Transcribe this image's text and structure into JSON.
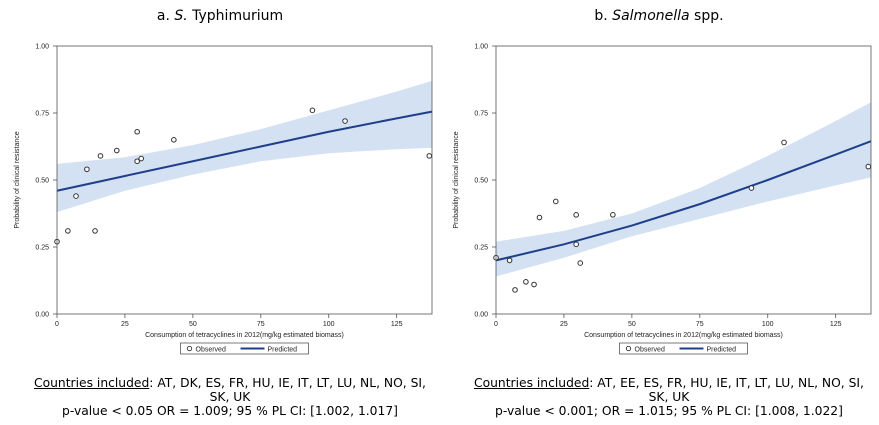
{
  "panels": [
    {
      "title_prefix": "a. ",
      "title_italic": "S.",
      "title_suffix": " Typhimurium",
      "caption_label": "Countries included",
      "caption_countries": ": AT, DK, ES, FR, HU, IE, IT, LT, LU, NL, NO, SI, SK, UK",
      "caption_stats": "p-value < 0.05 OR = 1.009; 95 % PL CI: [1.002, 1.017]"
    },
    {
      "title_prefix": "b. ",
      "title_italic": "Salmonella",
      "title_suffix": " spp.",
      "caption_label": "Countries included",
      "caption_countries": ": AT, EE, ES, FR, HU, IE, IT, LT, LU, NL, NO, SI, SK, UK",
      "caption_stats": "p-value < 0.001; OR = 1.015; 95 % PL CI: [1.008, 1.022]"
    }
  ],
  "chart_data": [
    {
      "type": "line",
      "title": "a. S. Typhimurium",
      "xlabel": "Consumption of tetracyclines in 2012(mg/kg estimated biomass)",
      "ylabel": "Probability of clinical resistance",
      "xlim": [
        0,
        138
      ],
      "ylim": [
        0,
        1
      ],
      "x_ticks": [
        0,
        25,
        50,
        75,
        100,
        125
      ],
      "y_ticks": [
        0.0,
        0.25,
        0.5,
        0.75,
        1.0
      ],
      "x_tick_labels": [
        "0",
        "25",
        "50",
        "75",
        "100",
        "125"
      ],
      "y_tick_labels": [
        "0.00",
        "0.25",
        "0.50",
        "0.75",
        "1.00"
      ],
      "legend": [
        "Observed",
        "Predicted"
      ],
      "legend_position": "bottom",
      "grid": false,
      "colors": {
        "band": "#d3e1f2",
        "line": "#1f3f8a",
        "marker": "#333333"
      },
      "observed": [
        {
          "x": 0,
          "y": 0.27
        },
        {
          "x": 4,
          "y": 0.31
        },
        {
          "x": 7,
          "y": 0.44
        },
        {
          "x": 11,
          "y": 0.54
        },
        {
          "x": 14,
          "y": 0.31
        },
        {
          "x": 16,
          "y": 0.59
        },
        {
          "x": 22,
          "y": 0.61
        },
        {
          "x": 29.5,
          "y": 0.57
        },
        {
          "x": 29.5,
          "y": 0.68
        },
        {
          "x": 31,
          "y": 0.58
        },
        {
          "x": 43,
          "y": 0.65
        },
        {
          "x": 94,
          "y": 0.76
        },
        {
          "x": 106,
          "y": 0.72
        },
        {
          "x": 137,
          "y": 0.59
        }
      ],
      "predicted": [
        {
          "x": 0,
          "y": 0.46
        },
        {
          "x": 25,
          "y": 0.515
        },
        {
          "x": 50,
          "y": 0.57
        },
        {
          "x": 75,
          "y": 0.625
        },
        {
          "x": 100,
          "y": 0.68
        },
        {
          "x": 125,
          "y": 0.73
        },
        {
          "x": 138,
          "y": 0.755
        }
      ],
      "ci_upper": [
        {
          "x": 0,
          "y": 0.56
        },
        {
          "x": 25,
          "y": 0.585
        },
        {
          "x": 50,
          "y": 0.63
        },
        {
          "x": 75,
          "y": 0.69
        },
        {
          "x": 100,
          "y": 0.76
        },
        {
          "x": 125,
          "y": 0.83
        },
        {
          "x": 138,
          "y": 0.87
        }
      ],
      "ci_lower": [
        {
          "x": 0,
          "y": 0.38
        },
        {
          "x": 25,
          "y": 0.46
        },
        {
          "x": 50,
          "y": 0.52
        },
        {
          "x": 75,
          "y": 0.57
        },
        {
          "x": 100,
          "y": 0.6
        },
        {
          "x": 125,
          "y": 0.615
        },
        {
          "x": 138,
          "y": 0.62
        }
      ]
    },
    {
      "type": "line",
      "title": "b. Salmonella spp.",
      "xlabel": "Consumption of tetracyclines in 2012(mg/kg estimated biomass)",
      "ylabel": "Probability of clinical resistance",
      "xlim": [
        0,
        138
      ],
      "ylim": [
        0,
        1
      ],
      "x_ticks": [
        0,
        25,
        50,
        75,
        100,
        125
      ],
      "y_ticks": [
        0.0,
        0.25,
        0.5,
        0.75,
        1.0
      ],
      "x_tick_labels": [
        "0",
        "25",
        "50",
        "75",
        "100",
        "125"
      ],
      "y_tick_labels": [
        "0.00",
        "0.25",
        "0.50",
        "0.75",
        "1.00"
      ],
      "legend": [
        "Observed",
        "Predicted"
      ],
      "legend_position": "bottom",
      "grid": false,
      "colors": {
        "band": "#d3e1f2",
        "line": "#1f3f8a",
        "marker": "#333333"
      },
      "observed": [
        {
          "x": 0,
          "y": 0.21
        },
        {
          "x": 5,
          "y": 0.2
        },
        {
          "x": 7,
          "y": 0.09
        },
        {
          "x": 11,
          "y": 0.12
        },
        {
          "x": 14,
          "y": 0.11
        },
        {
          "x": 16,
          "y": 0.36
        },
        {
          "x": 22,
          "y": 0.42
        },
        {
          "x": 29.5,
          "y": 0.26
        },
        {
          "x": 29.5,
          "y": 0.37
        },
        {
          "x": 31,
          "y": 0.19
        },
        {
          "x": 43,
          "y": 0.37
        },
        {
          "x": 94,
          "y": 0.47
        },
        {
          "x": 106,
          "y": 0.64
        },
        {
          "x": 137,
          "y": 0.55
        }
      ],
      "predicted": [
        {
          "x": 0,
          "y": 0.2
        },
        {
          "x": 25,
          "y": 0.26
        },
        {
          "x": 50,
          "y": 0.33
        },
        {
          "x": 75,
          "y": 0.41
        },
        {
          "x": 100,
          "y": 0.5
        },
        {
          "x": 125,
          "y": 0.595
        },
        {
          "x": 138,
          "y": 0.645
        }
      ],
      "ci_upper": [
        {
          "x": 0,
          "y": 0.27
        },
        {
          "x": 25,
          "y": 0.31
        },
        {
          "x": 50,
          "y": 0.375
        },
        {
          "x": 75,
          "y": 0.47
        },
        {
          "x": 100,
          "y": 0.59
        },
        {
          "x": 125,
          "y": 0.72
        },
        {
          "x": 138,
          "y": 0.79
        }
      ],
      "ci_lower": [
        {
          "x": 0,
          "y": 0.14
        },
        {
          "x": 25,
          "y": 0.21
        },
        {
          "x": 50,
          "y": 0.29
        },
        {
          "x": 75,
          "y": 0.355
        },
        {
          "x": 100,
          "y": 0.42
        },
        {
          "x": 125,
          "y": 0.48
        },
        {
          "x": 138,
          "y": 0.51
        }
      ]
    }
  ]
}
